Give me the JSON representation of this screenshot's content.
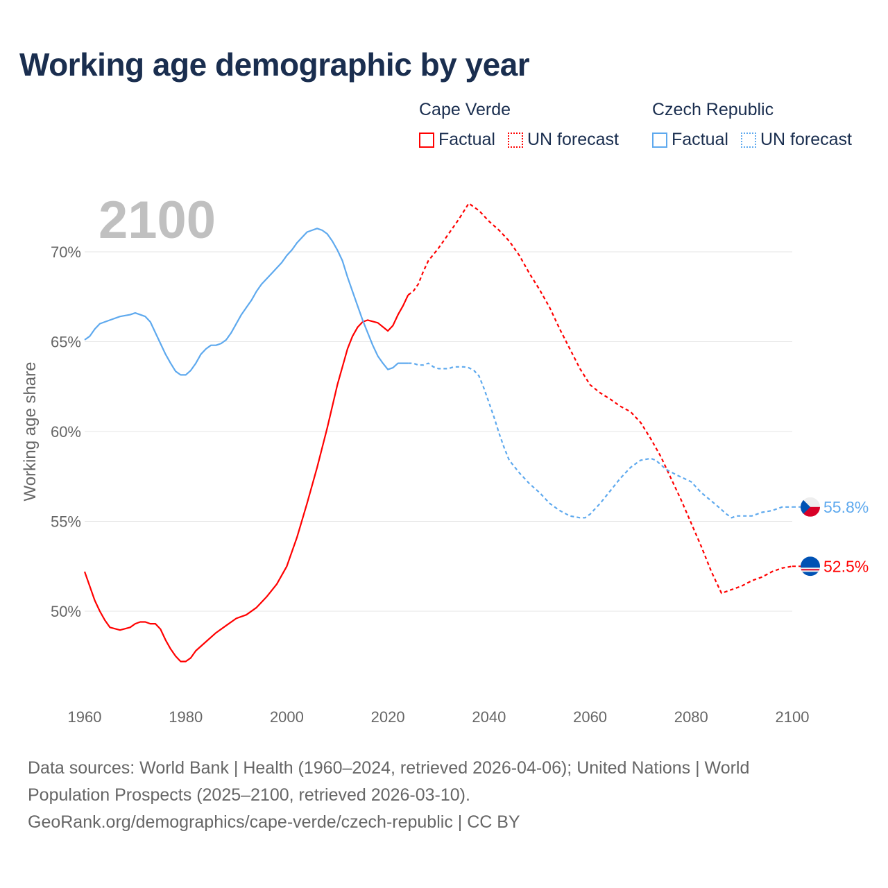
{
  "colors": {
    "cape_verde": "#ff0000",
    "czech": "#5ea9ee",
    "title": "#1a2e4f"
  },
  "chart_data": {
    "type": "line",
    "title": "Working age demographic by year",
    "ylabel": "Working age share",
    "xlabel": "",
    "year_watermark": "2100",
    "xlim": [
      1960,
      2100
    ],
    "ylim": [
      45,
      72.9
    ],
    "xticks": [
      "1960",
      "1980",
      "2000",
      "2020",
      "2040",
      "2060",
      "2080",
      "2100"
    ],
    "yticks": [
      "50%",
      "55%",
      "60%",
      "65%",
      "70%"
    ],
    "grid": true,
    "legend_placement": "top-right",
    "legend": [
      {
        "group": "Cape Verde",
        "items": [
          "Factual",
          "UN forecast"
        ]
      },
      {
        "group": "Czech Republic",
        "items": [
          "Factual",
          "UN forecast"
        ]
      }
    ],
    "series": [
      {
        "name": "Cape Verde",
        "kind": "Factual",
        "color": "#ff0000",
        "x": [
          1960,
          1961,
          1962,
          1963,
          1964,
          1965,
          1967,
          1969,
          1970,
          1971,
          1972,
          1973,
          1974,
          1975,
          1976,
          1977,
          1978,
          1979,
          1980,
          1981,
          1982,
          1984,
          1986,
          1988,
          1990,
          1992,
          1994,
          1996,
          1998,
          2000,
          2002,
          2004,
          2006,
          2008,
          2010,
          2012,
          2013,
          2014,
          2015,
          2016,
          2018,
          2020,
          2021,
          2022,
          2023,
          2024
        ],
        "y": [
          52.2,
          51.4,
          50.6,
          50.0,
          49.5,
          49.1,
          48.95,
          49.1,
          49.3,
          49.4,
          49.4,
          49.3,
          49.3,
          49.0,
          48.4,
          47.9,
          47.5,
          47.2,
          47.2,
          47.4,
          47.8,
          48.3,
          48.8,
          49.2,
          49.6,
          49.8,
          50.2,
          50.8,
          51.5,
          52.5,
          54.1,
          56.0,
          58.0,
          60.2,
          62.6,
          64.6,
          65.3,
          65.8,
          66.1,
          66.2,
          66.05,
          65.6,
          65.9,
          66.5,
          67.0,
          67.6
        ]
      },
      {
        "name": "Cape Verde",
        "kind": "UN forecast",
        "color": "#ff0000",
        "x": [
          2024,
          2025,
          2026,
          2027,
          2028,
          2030,
          2032,
          2034,
          2036,
          2037,
          2038,
          2040,
          2042,
          2044,
          2046,
          2048,
          2050,
          2052,
          2054,
          2056,
          2058,
          2060,
          2062,
          2064,
          2066,
          2068,
          2070,
          2072,
          2074,
          2076,
          2078,
          2080,
          2082,
          2084,
          2086,
          2088,
          2090,
          2092,
          2094,
          2096,
          2098,
          2100
        ],
        "y": [
          67.6,
          67.8,
          68.2,
          68.9,
          69.5,
          70.2,
          71.0,
          71.8,
          72.7,
          72.5,
          72.3,
          71.7,
          71.2,
          70.6,
          69.8,
          68.8,
          67.9,
          66.9,
          65.7,
          64.6,
          63.5,
          62.6,
          62.15,
          61.8,
          61.4,
          61.1,
          60.5,
          59.6,
          58.6,
          57.4,
          56.2,
          54.9,
          53.6,
          52.2,
          51.0,
          51.2,
          51.4,
          51.7,
          51.9,
          52.2,
          52.4,
          52.5
        ]
      },
      {
        "name": "Czech Republic",
        "kind": "Factual",
        "color": "#5ea9ee",
        "x": [
          1960,
          1961,
          1962,
          1963,
          1965,
          1967,
          1969,
          1970,
          1971,
          1972,
          1973,
          1974,
          1975,
          1976,
          1977,
          1978,
          1979,
          1980,
          1981,
          1982,
          1983,
          1984,
          1985,
          1986,
          1987,
          1988,
          1989,
          1990,
          1991,
          1992,
          1993,
          1994,
          1995,
          1996,
          1997,
          1998,
          1999,
          2000,
          2001,
          2002,
          2003,
          2004,
          2005,
          2006,
          2007,
          2008,
          2009,
          2010,
          2011,
          2012,
          2013,
          2014,
          2015,
          2016,
          2017,
          2018,
          2019,
          2020,
          2021,
          2022,
          2023,
          2024
        ],
        "y": [
          65.1,
          65.3,
          65.7,
          66.0,
          66.2,
          66.4,
          66.5,
          66.6,
          66.5,
          66.4,
          66.1,
          65.5,
          64.9,
          64.3,
          63.8,
          63.35,
          63.15,
          63.15,
          63.4,
          63.8,
          64.3,
          64.6,
          64.8,
          64.8,
          64.9,
          65.1,
          65.5,
          66.0,
          66.5,
          66.9,
          67.3,
          67.8,
          68.2,
          68.5,
          68.8,
          69.1,
          69.4,
          69.8,
          70.1,
          70.5,
          70.8,
          71.1,
          71.2,
          71.3,
          71.2,
          71.0,
          70.6,
          70.1,
          69.5,
          68.6,
          67.8,
          67.0,
          66.2,
          65.5,
          64.8,
          64.2,
          63.8,
          63.45,
          63.55,
          63.8,
          63.8,
          63.8
        ]
      },
      {
        "name": "Czech Republic",
        "kind": "UN forecast",
        "color": "#5ea9ee",
        "x": [
          2024,
          2025,
          2026,
          2027,
          2028,
          2029,
          2030,
          2032,
          2033,
          2035,
          2036,
          2037,
          2038,
          2039,
          2040,
          2041,
          2042,
          2043,
          2044,
          2046,
          2048,
          2050,
          2052,
          2054,
          2056,
          2058,
          2059,
          2060,
          2062,
          2064,
          2066,
          2068,
          2070,
          2072,
          2073,
          2075,
          2077,
          2080,
          2082,
          2085,
          2087,
          2088,
          2089,
          2092,
          2094,
          2096,
          2098,
          2100
        ],
        "y": [
          63.8,
          63.8,
          63.7,
          63.7,
          63.8,
          63.6,
          63.5,
          63.5,
          63.6,
          63.6,
          63.55,
          63.4,
          63.1,
          62.4,
          61.6,
          60.8,
          59.9,
          59.1,
          58.4,
          57.7,
          57.1,
          56.6,
          56.0,
          55.6,
          55.3,
          55.2,
          55.2,
          55.4,
          56.0,
          56.7,
          57.4,
          58.0,
          58.4,
          58.5,
          58.4,
          57.9,
          57.6,
          57.2,
          56.6,
          55.9,
          55.4,
          55.2,
          55.3,
          55.3,
          55.5,
          55.6,
          55.8,
          55.8
        ]
      }
    ],
    "end_labels": [
      {
        "country": "Czech Republic",
        "value": 55.8,
        "label": "55.8%",
        "color": "#5ea9ee",
        "flag": "czech-flag"
      },
      {
        "country": "Cape Verde",
        "value": 52.5,
        "label": "52.5%",
        "color": "#ff0000",
        "flag": "cape-verde-flag"
      }
    ]
  },
  "footer": {
    "sources": "Data sources: World Bank | Health (1960–2024, retrieved 2026-04-06); United Nations | World Population Prospects (2025–2100, retrieved 2026-03-10).",
    "link": "GeoRank.org/demographics/cape-verde/czech-republic | CC BY"
  }
}
